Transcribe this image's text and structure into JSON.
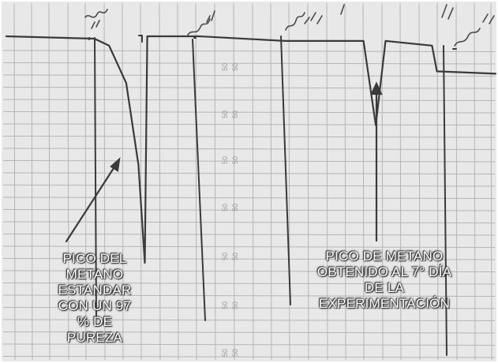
{
  "chart_data": {
    "type": "line",
    "title": "",
    "xlabel": "",
    "ylabel": "",
    "series": [
      {
        "values": [
          {
            "x": 0.0,
            "y": 100
          },
          {
            "x": 0.18,
            "y": 99
          },
          {
            "x": 0.21,
            "y": 96
          },
          {
            "x": 0.245,
            "y": 80
          },
          {
            "x": 0.27,
            "y": 45
          },
          {
            "x": 0.283,
            "y": 3
          },
          {
            "x": 0.288,
            "y": 100
          },
          {
            "x": 0.39,
            "y": 100
          },
          {
            "x": 0.395,
            "y": 100
          },
          {
            "x": 0.57,
            "y": 98
          },
          {
            "x": 0.73,
            "y": 98
          },
          {
            "x": 0.755,
            "y": 62
          },
          {
            "x": 0.775,
            "y": 98
          },
          {
            "x": 0.87,
            "y": 96
          },
          {
            "x": 0.88,
            "y": 85
          },
          {
            "x": 1.0,
            "y": 84
          }
        ]
      }
    ],
    "annotations": [
      {
        "id": "standard-methane-peak",
        "lines": [
          "PICO DEL",
          "METANO",
          "ESTANDAR",
          "CON UN 97",
          "% DE",
          "PUREZA"
        ]
      },
      {
        "id": "day7-methane-peak",
        "lines": [
          "PICO DE METANO",
          "OBTENIDO AL 7° DÍA",
          "DE LA",
          "EXPERIMENTACIÓN"
        ]
      }
    ],
    "grid": true,
    "legend": "none"
  },
  "colors": {
    "paper": "#e8e8e8",
    "grid_line": "#b5b5b5",
    "ink": "#3a3a3a",
    "annotation_text": "#ffffff",
    "frame": "#6a6a6a"
  }
}
